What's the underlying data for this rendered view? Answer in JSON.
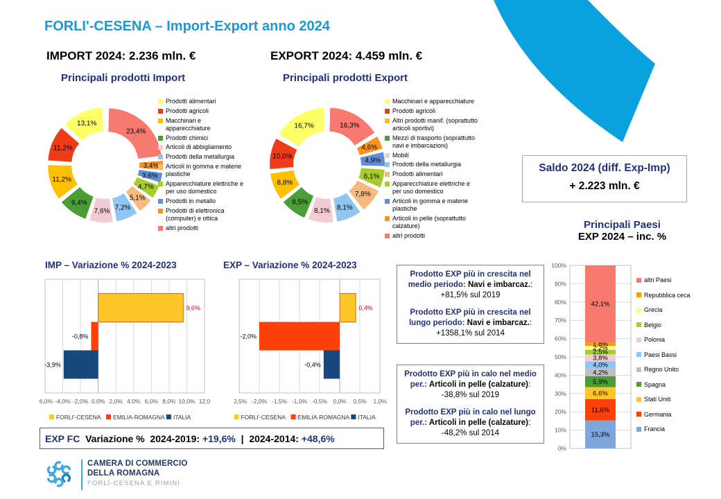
{
  "page": {
    "title": "FORLI'-CESENA – Import-Export anno 2024",
    "import_total": "IMPORT 2024: 2.236 mln. €",
    "export_total": "EXPORT 2024: 4.459 mln. €",
    "import_subtitle": "Principali prodotti Import",
    "export_subtitle": "Principali prodotti Export",
    "accent_cyan": "#0AA2DE",
    "accent_navy": "#22307E"
  },
  "saldo": {
    "line1": "Saldo 2024 (diff. Exp-Imp)",
    "line2": "+ 2.223 mln. €"
  },
  "paesi_heading": {
    "line1": "Principali Paesi",
    "line2": "EXP 2024 –  inc. %"
  },
  "callouts": {
    "growth": {
      "p1": {
        "lead": "Prodotto EXP più in crescita nel medio periodo: ",
        "name": "Navi e imbarcaz.",
        "rest": ": +81,5% sul 2019"
      },
      "p2": {
        "lead": "Prodotto EXP più in crescita nel lungo periodo: ",
        "name": "Navi e imbarcaz.",
        "rest": ": +1358,1% sul 2014"
      }
    },
    "decline": {
      "p1": {
        "lead": "Prodotto EXP più in calo nel medio per.: ",
        "name": "Articoli in pelle (calzature)",
        "rest": ": -38,8% sul 2019"
      },
      "p2": {
        "lead": "Prodotto EXP più in calo nel lungo per.: ",
        "name": "Articoli in pelle (calzature)",
        "rest": ": -48,2% sul 2014"
      }
    }
  },
  "expfc": {
    "prefix": "EXP FC",
    "label1": "  Variazione %  2024-2019: ",
    "value1": "+19,6%",
    "sep": "  |  ",
    "label2": "2024-2014: ",
    "value2": "+48,6%"
  },
  "footer": {
    "line1": "CAMERA DI COMMERCIO",
    "line2": "DELLA ROMAGNA",
    "line3": "FORLÌ-CESENA E RIMINI"
  },
  "chart_data": [
    {
      "id": "import_donut",
      "type": "pie",
      "subtype": "donut-exploded",
      "title": "Principali prodotti Import",
      "categories": [
        "Prodotti alimentari",
        "Prodotti agricoli",
        "Macchinari e apparecchiature",
        "Prodotti chimici",
        "Articoli di abbigliamento",
        "Prodotti della metallurgia",
        "Articoli in gomma e materie plastiche",
        "Apparecchiature elettriche e per uso domestico",
        "Prodotti in metallo",
        "Prodotti di elettronica (computer) e ottica",
        "altri prodotti"
      ],
      "values": [
        13.1,
        11.2,
        11.2,
        9.4,
        7.6,
        7.2,
        5.1,
        4.7,
        3.6,
        3.4,
        23.4
      ],
      "labels": [
        "13,1%",
        "11,2%",
        "11,2%",
        "9,4%",
        "7,6%",
        "7,2%",
        "5,1%",
        "4,7%",
        "3,6%",
        "3,4%",
        "23,4%"
      ],
      "colors": [
        "#FFFF66",
        "#ED3C17",
        "#FFC000",
        "#4A9E35",
        "#F2CBD5",
        "#8FC6F2",
        "#F9B87C",
        "#A8CC2B",
        "#608FD2",
        "#F7941D",
        "#F8796F"
      ]
    },
    {
      "id": "export_donut",
      "type": "pie",
      "subtype": "donut-exploded",
      "title": "Principali prodotti Export",
      "categories": [
        "Macchinari e apparecchiature",
        "Prodotti agricoli",
        "Altri prodotti manif. (soprattutto articoli sportivi)",
        "Mezzi di trasporto (soprattutto navi e imbarcazioni)",
        "Mobili",
        "Prodotti della metallurgia",
        "Prodotti alimentari",
        "Apparecchiature elettriche e per uso domestico",
        "Articoli in gomma e materie plastiche",
        "Articoli in pelle (soprattutto calzature)",
        "altri prodotti"
      ],
      "values": [
        16.7,
        10.0,
        8.8,
        8.5,
        8.1,
        8.1,
        7.8,
        6.1,
        4.9,
        4.6,
        16.3
      ],
      "labels": [
        "16,7%",
        "10,0%",
        "8,8%",
        "8,5%",
        "8,1%",
        "8,1%",
        "7,8%",
        "6,1%",
        "4,9%",
        "4,6%",
        "16,3%"
      ],
      "colors": [
        "#FFFF66",
        "#ED3C17",
        "#FFC000",
        "#4A9E35",
        "#F2CBD5",
        "#8FC6F2",
        "#F9B87C",
        "#A8CC2B",
        "#608FD2",
        "#F7941D",
        "#F8796F"
      ]
    },
    {
      "id": "imp_var",
      "type": "bar",
      "orientation": "horizontal",
      "title": "IMP – Variazione % 2024-2023",
      "categories": [
        "FORLI'-CESENA",
        "EMILIA-ROMAGNA",
        "ITALIA"
      ],
      "values": [
        9.6,
        -0.8,
        -3.9
      ],
      "value_labels": [
        "9,6%",
        "-0,8%",
        "-3,9%"
      ],
      "label_colors": [
        "#FF0000",
        "#000000",
        "#000000"
      ],
      "colors": [
        "#FFC629",
        "#FB4109",
        "#17497B"
      ],
      "bar_strokes": [
        "#E8641B",
        "none",
        "none"
      ],
      "xlim": [
        -6,
        12
      ],
      "ticks": [
        {
          "v": -6,
          "t": "-6,0%"
        },
        {
          "v": -4,
          "t": "-4,0%"
        },
        {
          "v": -2,
          "t": "-2,0%"
        },
        {
          "v": 0,
          "t": "0,0%"
        },
        {
          "v": 2,
          "t": "2,0%"
        },
        {
          "v": 4,
          "t": "4,0%"
        },
        {
          "v": 6,
          "t": "6,0%"
        },
        {
          "v": 8,
          "t": "8,0%"
        },
        {
          "v": 10,
          "t": "10,0%"
        },
        {
          "v": 12,
          "t": "12,0"
        }
      ]
    },
    {
      "id": "exp_var",
      "type": "bar",
      "orientation": "horizontal",
      "title": "EXP – Variazione % 2024-2023",
      "categories": [
        "FORLI'-CESENA",
        "EMILIA-ROMAGNA",
        "ITALIA"
      ],
      "values": [
        0.4,
        -2.0,
        -0.4
      ],
      "value_labels": [
        "0,4%",
        "-2,0%",
        "-0,4%"
      ],
      "label_colors": [
        "#FF0000",
        "#000000",
        "#000000"
      ],
      "colors": [
        "#FFC629",
        "#FB4109",
        "#17497B"
      ],
      "bar_strokes": [
        "#E8641B",
        "none",
        "none"
      ],
      "xlim": [
        -2.5,
        1.0
      ],
      "ticks": [
        {
          "v": -2.5,
          "t": "-2,5%"
        },
        {
          "v": -2,
          "t": "-2,0%"
        },
        {
          "v": -1.5,
          "t": "-1,5%"
        },
        {
          "v": -1,
          "t": "-1,0%"
        },
        {
          "v": -0.5,
          "t": "-0,5%"
        },
        {
          "v": 0,
          "t": "0,0%"
        },
        {
          "v": 0.5,
          "t": "0,5%"
        },
        {
          "v": 1,
          "t": "1,0%"
        }
      ]
    },
    {
      "id": "paesi_stacked",
      "type": "bar",
      "stacked": true,
      "title": "Principali Paesi EXP 2024 – inc. %",
      "categories_bottom_up": [
        "Francia",
        "Germania",
        "Stati Uniti",
        "Spagna",
        "Regno Unito",
        "Paesi Bassi",
        "Polonia",
        "Belgio",
        "Grecia",
        "Repubblica ceca",
        "altri Paesi"
      ],
      "values": [
        15.3,
        11.6,
        6.6,
        5.9,
        4.2,
        4.0,
        3.8,
        2.5,
        2.2,
        1.8,
        42.1
      ],
      "labels": [
        "15,3%",
        "11,6%",
        "6,6%",
        "5,9%",
        "4,2%",
        "4,0%",
        "3,8%",
        "2,5%",
        "2,2%",
        "1,8%",
        "42,1%"
      ],
      "colors": [
        "#7EA6DC",
        "#FB4109",
        "#FFC629",
        "#4A9E35",
        "#BFBFBF",
        "#8FC6F2",
        "#F2CBD5",
        "#A8CC2B",
        "#FFFB91",
        "#FF9900",
        "#F8796F"
      ],
      "ylim": [
        0,
        100
      ],
      "yticks": [
        "0%",
        "10%",
        "20%",
        "30%",
        "40%",
        "50%",
        "60%",
        "70%",
        "80%",
        "90%",
        "100%"
      ]
    }
  ]
}
